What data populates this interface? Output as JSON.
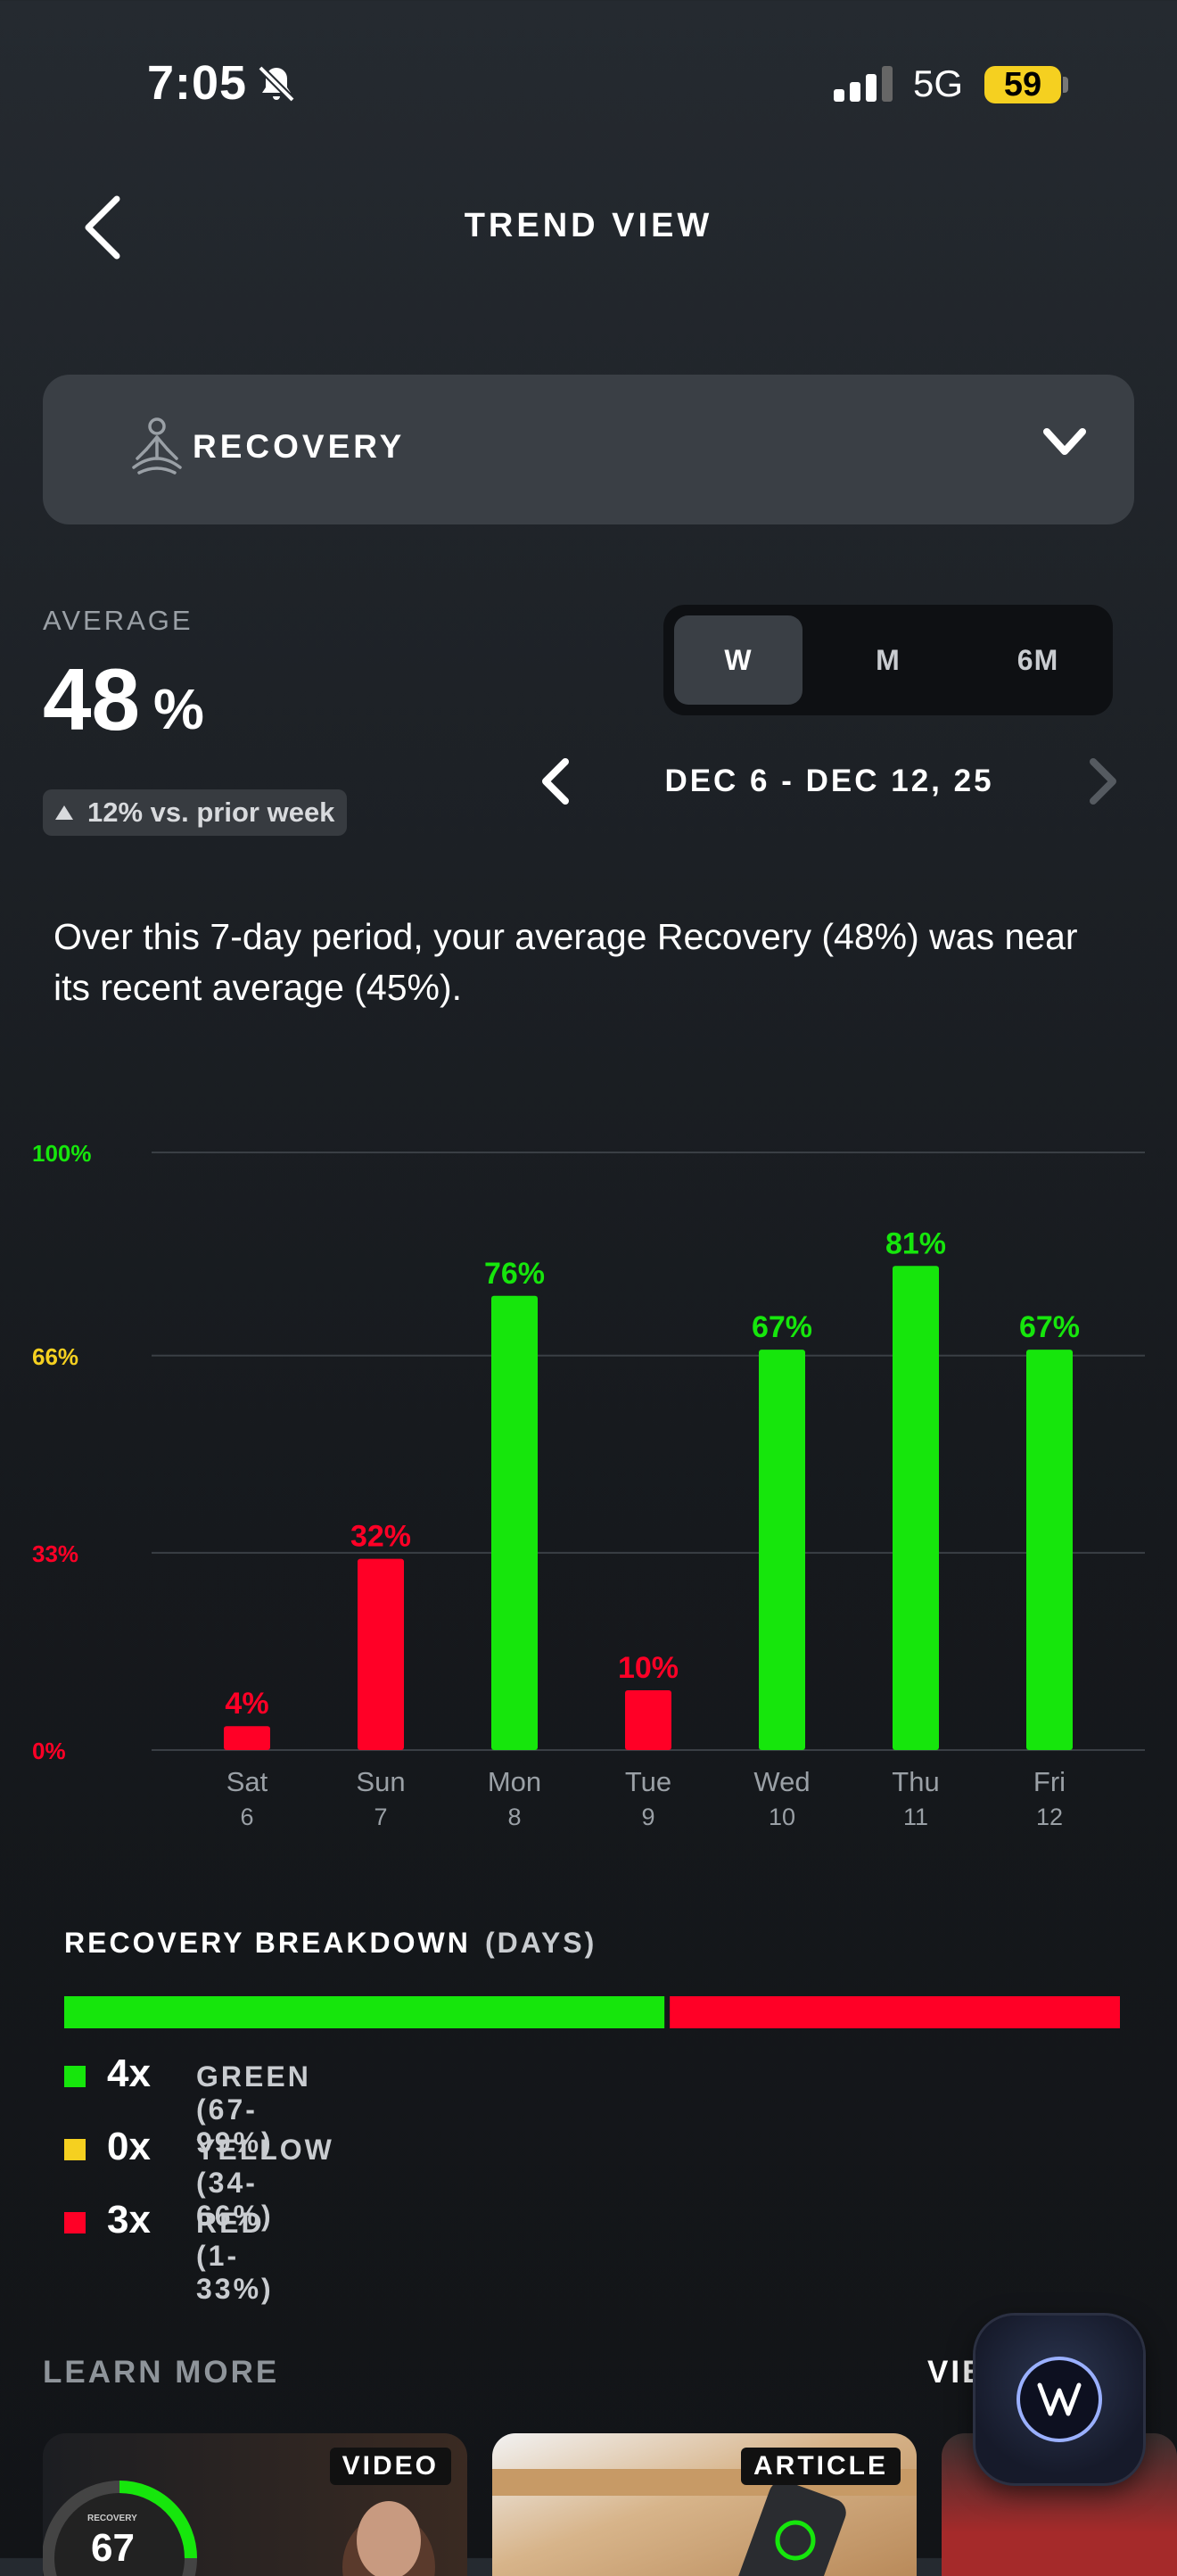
{
  "status_bar": {
    "time": "7:05",
    "network": "5G",
    "battery": "59"
  },
  "header": {
    "title": "TREND VIEW"
  },
  "metric_selector": {
    "label": "RECOVERY"
  },
  "average": {
    "label": "AVERAGE",
    "value": "48",
    "unit": "%",
    "delta": "12% vs. prior week"
  },
  "range_tabs": [
    "W",
    "M",
    "6M"
  ],
  "date_range": "DEC 6 - DEC 12, 25",
  "summary": "Over this 7-day period, your average Recovery (48%) was near its recent average (45%).",
  "chart_data": {
    "type": "bar",
    "categories": [
      "Sat",
      "Sun",
      "Mon",
      "Tue",
      "Wed",
      "Thu",
      "Fri"
    ],
    "category_dates": [
      "6",
      "7",
      "8",
      "9",
      "10",
      "11",
      "12"
    ],
    "values": [
      4,
      32,
      76,
      10,
      67,
      81,
      67
    ],
    "data_labels": [
      "4%",
      "32%",
      "76%",
      "10%",
      "67%",
      "81%",
      "67%"
    ],
    "ylim": [
      0,
      100
    ],
    "y_ticks": [
      0,
      33,
      66,
      100
    ],
    "y_tick_labels": [
      "0%",
      "33%",
      "66%",
      "100%"
    ],
    "grid": true,
    "colors": {
      "green": "#16e60c",
      "yellow": "#f5d020",
      "red": "#ff0026"
    }
  },
  "breakdown": {
    "title": "RECOVERY BREAKDOWN",
    "subtitle": "(DAYS)",
    "green_days": 4,
    "red_days": 3,
    "items": [
      {
        "count": "4x",
        "label": "GREEN (67-99%)",
        "color": "#16e60c"
      },
      {
        "count": "0x",
        "label": "YELLOW (34-66%)",
        "color": "#f5d020"
      },
      {
        "count": "3x",
        "label": "RED (1-33%)",
        "color": "#ff0026"
      }
    ]
  },
  "learn_more": {
    "title": "LEARN MORE",
    "view_all": "VIEW ALL",
    "cards": [
      {
        "badge": "VIDEO",
        "ring_title": "RECOVERY",
        "ring_value": "67"
      },
      {
        "badge": "ARTICLE"
      }
    ]
  }
}
